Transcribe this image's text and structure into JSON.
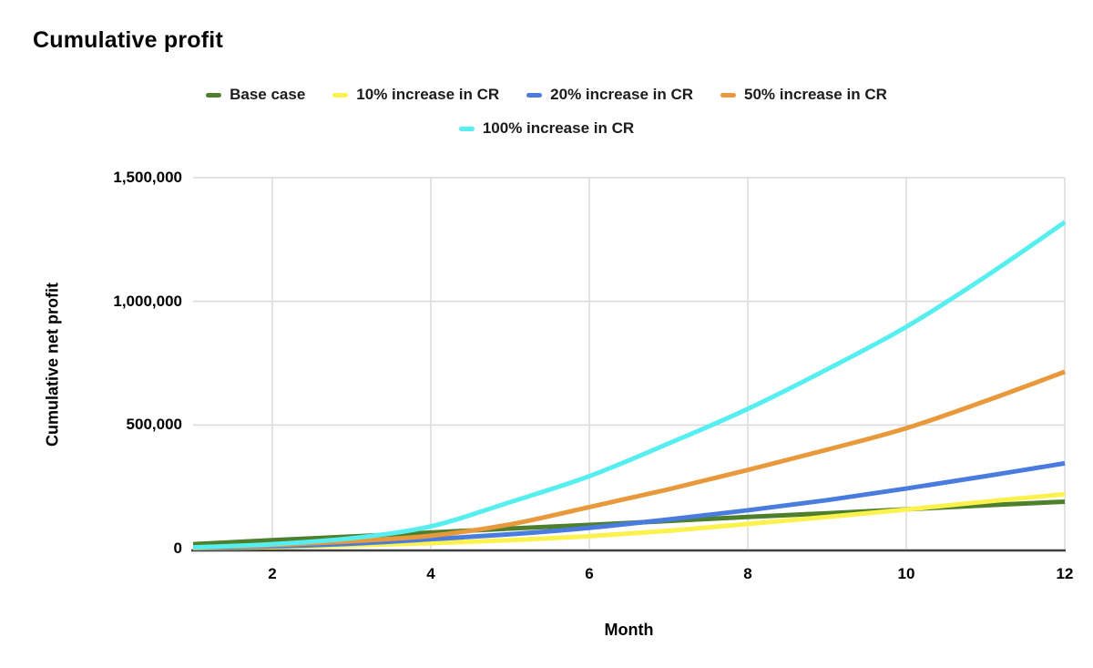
{
  "chart_data": {
    "type": "line",
    "title": "Cumulative profit",
    "xlabel": "Month",
    "ylabel": "Cumulative net profit",
    "grid": true,
    "legend_position": "top",
    "smooth": true,
    "xlim": [
      1,
      12
    ],
    "ylim": [
      0,
      1500000
    ],
    "x": [
      1,
      2,
      3,
      4,
      5,
      6,
      7,
      8,
      9,
      10,
      11,
      12
    ],
    "x_ticks": [
      {
        "value": 2,
        "label": "2"
      },
      {
        "value": 4,
        "label": "4"
      },
      {
        "value": 6,
        "label": "6"
      },
      {
        "value": 8,
        "label": "8"
      },
      {
        "value": 10,
        "label": "10"
      },
      {
        "value": 12,
        "label": "12"
      }
    ],
    "y_ticks": [
      {
        "value": 0,
        "label": "0"
      },
      {
        "value": 500000,
        "label": "500,000"
      },
      {
        "value": 1000000,
        "label": "1,000,000"
      },
      {
        "value": 1500000,
        "label": "1,500,000"
      }
    ],
    "series": [
      {
        "name": "Base case",
        "color": "#4d7f2d",
        "values": [
          18000,
          34000,
          49000,
          65000,
          81000,
          96000,
          112000,
          128000,
          143000,
          159000,
          175000,
          190000
        ]
      },
      {
        "name": "10% increase in CR",
        "color": "#fbf24d",
        "values": [
          2000,
          6000,
          13000,
          22000,
          34000,
          50000,
          72000,
          100000,
          128000,
          158000,
          190000,
          220000
        ]
      },
      {
        "name": "20% increase in CR",
        "color": "#4a7ce0",
        "values": [
          3000,
          9000,
          20000,
          38000,
          58000,
          84000,
          118000,
          155000,
          196000,
          243000,
          293000,
          345000
        ]
      },
      {
        "name": "50% increase in CR",
        "color": "#e8993b",
        "values": [
          4000,
          14000,
          30000,
          52000,
          98000,
          168000,
          240000,
          318000,
          400000,
          487000,
          597000,
          715000
        ]
      },
      {
        "name": "100% increase in CR",
        "color": "#57eef0",
        "values": [
          5000,
          18000,
          42000,
          90000,
          188000,
          293000,
          425000,
          565000,
          725000,
          897000,
          1100000,
          1320000
        ]
      }
    ],
    "legend_rows": [
      [
        0,
        1,
        2,
        3
      ],
      [
        4
      ]
    ],
    "colors": {
      "gridline": "#dadada",
      "axis_line": "#3f3f3f",
      "text": "#000000",
      "background": "#ffffff"
    }
  }
}
